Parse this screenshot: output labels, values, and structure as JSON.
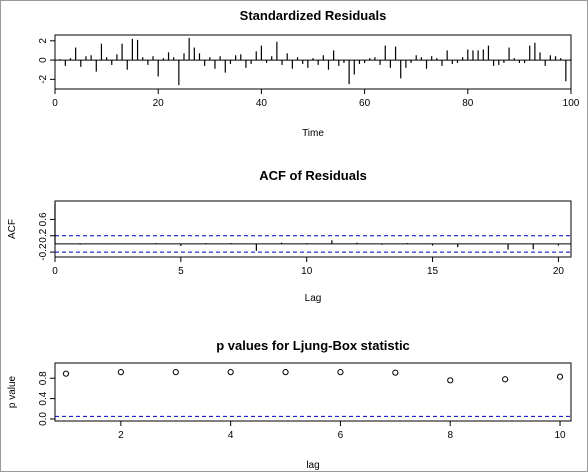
{
  "chart_data": [
    {
      "type": "bar",
      "title": "Standardized Residuals",
      "xlabel": "Time",
      "ylabel": "",
      "xlim": [
        0,
        100
      ],
      "ylim": [
        -3,
        2.6
      ],
      "xticks": [
        0,
        20,
        40,
        60,
        80,
        100
      ],
      "yticks": [
        -2,
        0,
        2
      ],
      "reference_lines": [
        0
      ],
      "x": [
        1,
        2,
        3,
        4,
        5,
        6,
        7,
        8,
        9,
        10,
        11,
        12,
        13,
        14,
        15,
        16,
        17,
        18,
        19,
        20,
        21,
        22,
        23,
        24,
        25,
        26,
        27,
        28,
        29,
        30,
        31,
        32,
        33,
        34,
        35,
        36,
        37,
        38,
        39,
        40,
        41,
        42,
        43,
        44,
        45,
        46,
        47,
        48,
        49,
        50,
        51,
        52,
        53,
        54,
        55,
        56,
        57,
        58,
        59,
        60,
        61,
        62,
        63,
        64,
        65,
        66,
        67,
        68,
        69,
        70,
        71,
        72,
        73,
        74,
        75,
        76,
        77,
        78,
        79,
        80,
        81,
        82,
        83,
        84,
        85,
        86,
        87,
        88,
        89,
        90,
        91,
        92,
        93,
        94,
        95,
        96,
        97,
        98,
        99,
        100
      ],
      "values": [
        0.1,
        -0.6,
        0.2,
        1.3,
        -0.7,
        0.4,
        0.5,
        -1.2,
        1.7,
        0.3,
        -0.5,
        0.6,
        1.7,
        -1.0,
        2.2,
        2.1,
        0.3,
        -0.5,
        0.4,
        -1.7,
        0.2,
        0.8,
        0.3,
        -2.6,
        0.7,
        2.3,
        1.3,
        0.7,
        -0.6,
        0.3,
        -0.9,
        0.4,
        -1.3,
        -0.4,
        0.5,
        0.6,
        -0.8,
        -0.4,
        0.9,
        1.5,
        -0.3,
        0.4,
        1.9,
        -0.5,
        0.7,
        -0.9,
        0.3,
        -0.4,
        -0.8,
        0.2,
        -0.5,
        0.5,
        -1.0,
        1.0,
        -0.6,
        -0.3,
        -2.5,
        -1.5,
        -0.4,
        -0.3,
        0.2,
        0.3,
        -0.5,
        1.5,
        -0.8,
        1.4,
        -1.9,
        -0.8,
        -0.3,
        0.5,
        0.3,
        -0.9,
        0.4,
        0.2,
        -0.6,
        1.0,
        -0.4,
        -0.3,
        0.3,
        1.1,
        1.0,
        1.0,
        1.1,
        1.5,
        -0.6,
        -0.5,
        -0.3,
        1.3,
        0.2,
        -0.3,
        -0.3,
        1.5,
        1.8,
        0.8,
        -0.6,
        0.5,
        0.4,
        0.2,
        -2.2,
        0.1
      ]
    },
    {
      "type": "bar",
      "title": "ACF of Residuals",
      "xlabel": "Lag",
      "ylabel": "ACF",
      "xlim": [
        0,
        20.5
      ],
      "ylim": [
        -0.32,
        1.05
      ],
      "xticks": [
        0,
        5,
        10,
        15,
        20
      ],
      "yticks": [
        -0.2,
        0.2,
        0.6
      ],
      "ytick_labels": [
        "-0.2",
        "0.2",
        "0.6"
      ],
      "reference_lines": [
        0
      ],
      "confidence_bounds": [
        0.2,
        -0.2
      ],
      "x": [
        0,
        1,
        2,
        3,
        4,
        5,
        6,
        7,
        8,
        9,
        10,
        11,
        12,
        13,
        14,
        15,
        16,
        17,
        18,
        19,
        20
      ],
      "values": [
        1.0,
        -0.02,
        -0.01,
        0.01,
        0.02,
        -0.05,
        0.02,
        0.02,
        -0.17,
        0.03,
        0.02,
        0.09,
        0.03,
        -0.02,
        0.02,
        -0.04,
        -0.08,
        0.01,
        -0.14,
        -0.13,
        -0.04
      ]
    },
    {
      "type": "scatter",
      "title": "p values for Ljung-Box statistic",
      "xlabel": "lag",
      "ylabel": "p value",
      "xlim": [
        0.8,
        10.2
      ],
      "ylim": [
        -0.04,
        1.1
      ],
      "xticks": [
        2,
        4,
        6,
        8,
        10
      ],
      "yticks": [
        0.0,
        0.4,
        0.8
      ],
      "ytick_labels": [
        "0.0",
        "0.4",
        "0.8"
      ],
      "reference_lines": [
        0.05
      ],
      "x": [
        1,
        2,
        3,
        4,
        5,
        6,
        7,
        8,
        9,
        10
      ],
      "values": [
        0.89,
        0.92,
        0.92,
        0.92,
        0.92,
        0.92,
        0.91,
        0.76,
        0.78,
        0.83
      ]
    }
  ],
  "colors": {
    "lines": "#000000",
    "bounds": "#0000cc",
    "frame": "#000000",
    "background": "#ffffff"
  }
}
